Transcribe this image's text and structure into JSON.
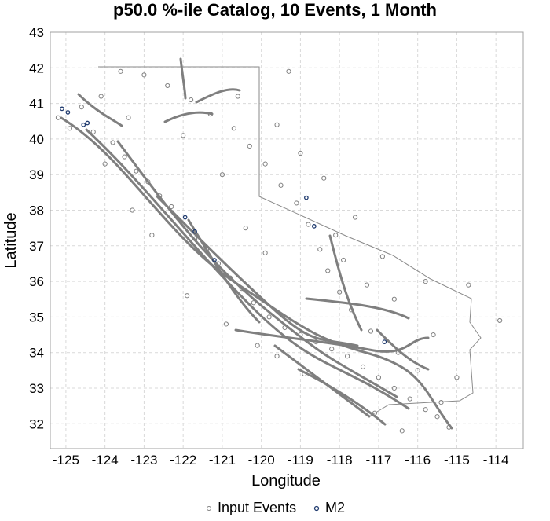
{
  "chart_data": {
    "type": "scatter",
    "title": "p50.0 %-ile Catalog, 10 Events, 1 Month",
    "xlabel": "Longitude",
    "ylabel": "Latitude",
    "xlim": [
      -125.4,
      -113.3
    ],
    "ylim": [
      31.3,
      43.0
    ],
    "x_ticks": [
      -125,
      -124,
      -123,
      -122,
      -121,
      -120,
      -119,
      -118,
      -117,
      -116,
      -115,
      -114
    ],
    "y_ticks": [
      32,
      33,
      34,
      35,
      36,
      37,
      38,
      39,
      40,
      41,
      42,
      43
    ],
    "grid": true,
    "legend_position": "bottom",
    "legend": [
      {
        "label": "Input Events",
        "color": "#808080",
        "marker": "open-circle"
      },
      {
        "label": "M2",
        "color": "#1f3a6e",
        "marker": "open-circle"
      }
    ],
    "series": [
      {
        "name": "M2",
        "color": "#1f3a6e",
        "points": [
          {
            "x": -125.1,
            "y": 40.85
          },
          {
            "x": -124.95,
            "y": 40.75
          },
          {
            "x": -124.45,
            "y": 40.45
          },
          {
            "x": -121.95,
            "y": 37.8
          },
          {
            "x": -121.7,
            "y": 37.4
          },
          {
            "x": -121.2,
            "y": 36.6
          },
          {
            "x": -118.85,
            "y": 38.35
          },
          {
            "x": -118.65,
            "y": 37.55
          },
          {
            "x": -116.85,
            "y": 34.3
          },
          {
            "x": -124.55,
            "y": 40.4
          }
        ]
      },
      {
        "name": "Input Events",
        "color": "#808080",
        "points": [
          {
            "x": -125.2,
            "y": 40.6
          },
          {
            "x": -124.9,
            "y": 40.3
          },
          {
            "x": -124.6,
            "y": 40.9
          },
          {
            "x": -124.3,
            "y": 40.2
          },
          {
            "x": -124.1,
            "y": 41.2
          },
          {
            "x": -123.8,
            "y": 39.9
          },
          {
            "x": -123.5,
            "y": 39.5
          },
          {
            "x": -123.2,
            "y": 39.1
          },
          {
            "x": -122.9,
            "y": 38.8
          },
          {
            "x": -122.6,
            "y": 38.4
          },
          {
            "x": -122.3,
            "y": 38.1
          },
          {
            "x": -122.0,
            "y": 37.6
          },
          {
            "x": -121.7,
            "y": 37.2
          },
          {
            "x": -121.4,
            "y": 36.9
          },
          {
            "x": -121.1,
            "y": 36.5
          },
          {
            "x": -120.8,
            "y": 36.1
          },
          {
            "x": -120.5,
            "y": 35.8
          },
          {
            "x": -120.2,
            "y": 35.4
          },
          {
            "x": -119.8,
            "y": 35.0
          },
          {
            "x": -119.4,
            "y": 34.7
          },
          {
            "x": -119.0,
            "y": 34.5
          },
          {
            "x": -118.6,
            "y": 34.3
          },
          {
            "x": -118.2,
            "y": 34.1
          },
          {
            "x": -117.8,
            "y": 33.9
          },
          {
            "x": -117.4,
            "y": 33.6
          },
          {
            "x": -117.0,
            "y": 33.3
          },
          {
            "x": -116.6,
            "y": 33.0
          },
          {
            "x": -116.2,
            "y": 32.7
          },
          {
            "x": -115.8,
            "y": 32.4
          },
          {
            "x": -115.5,
            "y": 32.2
          },
          {
            "x": -115.2,
            "y": 31.9
          },
          {
            "x": -115.4,
            "y": 32.6
          },
          {
            "x": -116.0,
            "y": 33.5
          },
          {
            "x": -116.5,
            "y": 34.0
          },
          {
            "x": -117.2,
            "y": 34.6
          },
          {
            "x": -117.7,
            "y": 35.2
          },
          {
            "x": -118.0,
            "y": 35.7
          },
          {
            "x": -118.3,
            "y": 36.3
          },
          {
            "x": -118.5,
            "y": 36.9
          },
          {
            "x": -118.8,
            "y": 37.6
          },
          {
            "x": -119.1,
            "y": 38.2
          },
          {
            "x": -119.5,
            "y": 38.7
          },
          {
            "x": -119.9,
            "y": 39.3
          },
          {
            "x": -120.3,
            "y": 39.8
          },
          {
            "x": -120.7,
            "y": 40.3
          },
          {
            "x": -121.3,
            "y": 40.7
          },
          {
            "x": -121.8,
            "y": 41.1
          },
          {
            "x": -122.4,
            "y": 41.5
          },
          {
            "x": -123.0,
            "y": 41.8
          },
          {
            "x": -123.6,
            "y": 41.9
          },
          {
            "x": -119.3,
            "y": 41.9
          },
          {
            "x": -119.6,
            "y": 40.4
          },
          {
            "x": -118.4,
            "y": 38.9
          },
          {
            "x": -117.6,
            "y": 37.8
          },
          {
            "x": -117.9,
            "y": 36.6
          },
          {
            "x": -115.8,
            "y": 36.0
          },
          {
            "x": -114.7,
            "y": 35.9
          },
          {
            "x": -113.9,
            "y": 34.9
          },
          {
            "x": -116.6,
            "y": 35.5
          },
          {
            "x": -117.3,
            "y": 35.9
          },
          {
            "x": -120.9,
            "y": 34.8
          },
          {
            "x": -121.9,
            "y": 35.6
          },
          {
            "x": -122.8,
            "y": 37.3
          },
          {
            "x": -123.3,
            "y": 38.0
          },
          {
            "x": -124.0,
            "y": 39.3
          },
          {
            "x": -120.4,
            "y": 37.5
          },
          {
            "x": -119.9,
            "y": 36.8
          },
          {
            "x": -117.1,
            "y": 32.3
          },
          {
            "x": -116.4,
            "y": 31.8
          },
          {
            "x": -118.9,
            "y": 33.4
          },
          {
            "x": -119.6,
            "y": 33.9
          },
          {
            "x": -120.1,
            "y": 34.2
          },
          {
            "x": -115.6,
            "y": 34.5
          },
          {
            "x": -115.0,
            "y": 33.3
          },
          {
            "x": -116.9,
            "y": 36.7
          },
          {
            "x": -118.1,
            "y": 37.3
          },
          {
            "x": -121.0,
            "y": 39.0
          },
          {
            "x": -122.0,
            "y": 40.1
          },
          {
            "x": -123.4,
            "y": 40.6
          },
          {
            "x": -120.6,
            "y": 41.2
          },
          {
            "x": -119.0,
            "y": 39.6
          }
        ]
      }
    ]
  }
}
